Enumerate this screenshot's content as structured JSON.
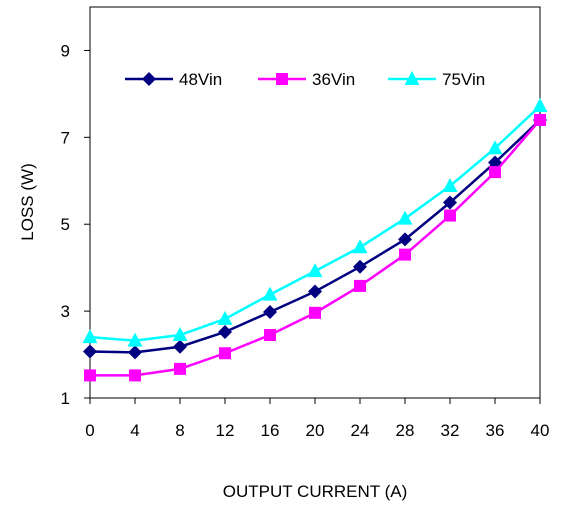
{
  "chart_data": {
    "type": "line",
    "title": "",
    "xlabel": "OUTPUT CURRENT (A)",
    "ylabel": "LOSS (W)",
    "x": [
      0,
      4,
      8,
      12,
      16,
      20,
      24,
      28,
      32,
      36,
      40
    ],
    "xlim": [
      0,
      40
    ],
    "ylim": [
      1,
      10
    ],
    "yticks": [
      1,
      3,
      5,
      7,
      9
    ],
    "xticks": [
      0,
      4,
      8,
      12,
      16,
      20,
      24,
      28,
      32,
      36,
      40
    ],
    "grid": false,
    "legend_position": "top-left",
    "series": [
      {
        "name": "48Vin",
        "color": "#000080",
        "marker": "diamond",
        "values": [
          2.07,
          2.05,
          2.18,
          2.52,
          2.98,
          3.45,
          4.02,
          4.65,
          5.5,
          6.42,
          7.4
        ]
      },
      {
        "name": "36Vin",
        "color": "#ff00ff",
        "marker": "square",
        "values": [
          1.52,
          1.52,
          1.67,
          2.03,
          2.45,
          2.96,
          3.58,
          4.3,
          5.2,
          6.2,
          7.4
        ]
      },
      {
        "name": "75Vin",
        "color": "#00ffff",
        "marker": "triangle",
        "values": [
          2.4,
          2.32,
          2.45,
          2.82,
          3.38,
          3.92,
          4.47,
          5.13,
          5.88,
          6.75,
          7.72
        ]
      }
    ]
  }
}
